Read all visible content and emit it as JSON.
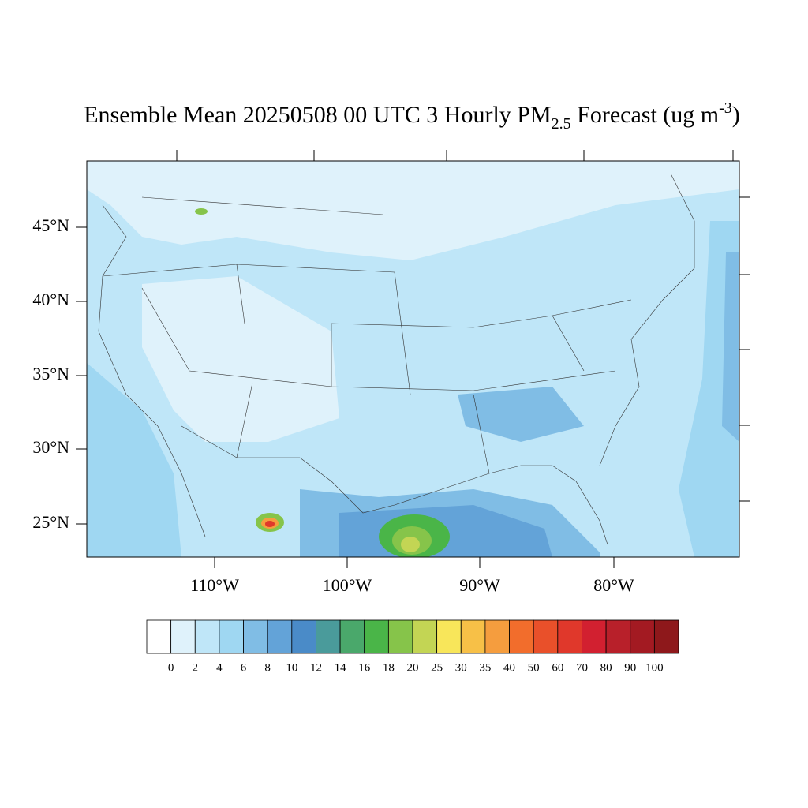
{
  "title": {
    "main": "Ensemble Mean 20250508 00 UTC 3 Hourly PM",
    "subscript": "2.5",
    "middle": " Forecast (ug m",
    "superscript": "-3",
    "end": ")"
  },
  "map": {
    "lat_labels": [
      "45°N",
      "40°N",
      "35°N",
      "30°N",
      "25°N"
    ],
    "lon_labels": [
      "110°W",
      "100°W",
      "90°W",
      "80°W"
    ]
  },
  "colorbar": {
    "labels": [
      0,
      2,
      4,
      6,
      8,
      10,
      12,
      14,
      16,
      18,
      20,
      25,
      30,
      35,
      40,
      50,
      60,
      70,
      80,
      90,
      100
    ],
    "colors": [
      "#ffffff",
      "#dff2fb",
      "#bfe6f8",
      "#9fd7f2",
      "#80bde5",
      "#63a3d8",
      "#4a8bc8",
      "#4a9b9b",
      "#4aa86b",
      "#4ab548",
      "#86c44a",
      "#c3d554",
      "#f8e65a",
      "#f7c047",
      "#f59d3e",
      "#f26d2c",
      "#e9502a",
      "#e0382b",
      "#d22030",
      "#b8202a",
      "#a31a22",
      "#8e181b"
    ]
  }
}
